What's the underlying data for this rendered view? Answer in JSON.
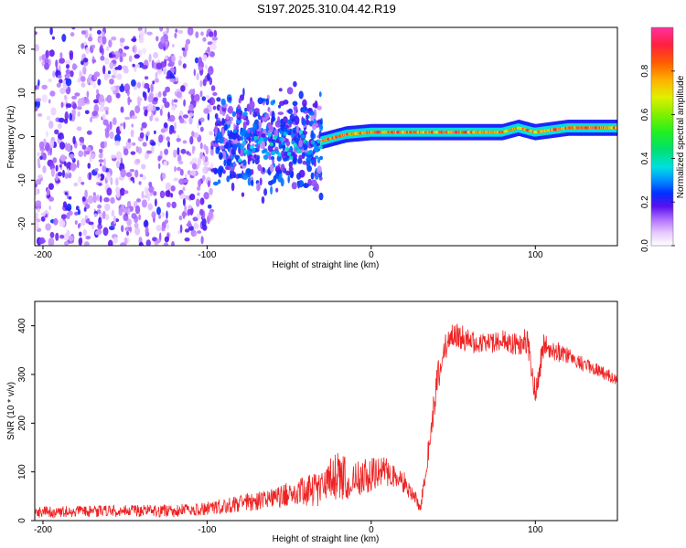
{
  "figure_title": "S197.2025.310.04.42.R19",
  "colors": {
    "snr_line": "#ee2222",
    "axis": "#000000",
    "spectrogram_low": "#e8d8ff",
    "spectrogram_mid": "#7a22ee",
    "spectrogram_peak": "#ff2050"
  },
  "chart_data": [
    {
      "type": "heatmap",
      "title": "",
      "xlabel": "Height of straight line (km)",
      "ylabel": "Frequency (Hz)",
      "xlim": [
        -205,
        150
      ],
      "ylim": [
        -25,
        25
      ],
      "xticks": [
        -200,
        -100,
        0,
        100
      ],
      "yticks": [
        -20,
        -10,
        0,
        10,
        20
      ],
      "colorbar": {
        "label": "Normalized spectral amplitude",
        "range": [
          0.0,
          1.0
        ],
        "ticks": [
          0.0,
          0.2,
          0.4,
          0.6,
          0.8
        ],
        "tick_labels": [
          "0.0",
          "0.2",
          "0.4",
          "0.6",
          "0.8"
        ],
        "colormap": "gist_ncar_r"
      },
      "description_regions": [
        {
          "x_range": [
            -205,
            -95
          ],
          "freq_range": [
            -25,
            25
          ],
          "amplitude": [
            0.05,
            0.25
          ]
        },
        {
          "x_range": [
            -95,
            -30
          ],
          "freq_range": [
            -15,
            12
          ],
          "amplitude": [
            0.1,
            0.3
          ]
        },
        {
          "x_range": [
            -30,
            150
          ],
          "freq_range": [
            -1,
            3
          ],
          "amplitude": [
            0.5,
            1.0
          ]
        }
      ],
      "ridge": {
        "x": [
          -80,
          -50,
          -30,
          -15,
          0,
          20,
          40,
          60,
          80,
          90,
          100,
          120,
          150
        ],
        "freq": [
          -3,
          -2,
          -1,
          0.5,
          1,
          1,
          1,
          1,
          1,
          2,
          1,
          2,
          2
        ]
      }
    },
    {
      "type": "line",
      "title": "",
      "xlabel": "Height of straight line (km)",
      "ylabel": "SNR (10 * v/v)",
      "xlim": [
        -205,
        150
      ],
      "ylim": [
        0,
        450
      ],
      "xticks": [
        -200,
        -100,
        0,
        100
      ],
      "yticks": [
        0,
        100,
        200,
        300,
        400
      ],
      "series": [
        {
          "name": "SNR",
          "color": "#ee2222",
          "x": [
            -205,
            -180,
            -150,
            -120,
            -100,
            -80,
            -60,
            -50,
            -40,
            -30,
            -20,
            -10,
            0,
            10,
            20,
            25,
            30,
            35,
            40,
            45,
            50,
            60,
            70,
            80,
            90,
            95,
            100,
            105,
            110,
            120,
            130,
            140,
            150
          ],
          "y": [
            18,
            18,
            20,
            20,
            25,
            35,
            45,
            55,
            60,
            70,
            90,
            85,
            95,
            100,
            80,
            60,
            25,
            150,
            280,
            360,
            380,
            370,
            360,
            370,
            360,
            370,
            260,
            360,
            350,
            340,
            320,
            305,
            290
          ],
          "noise_amplitude": [
            12,
            12,
            12,
            13,
            14,
            18,
            22,
            25,
            30,
            40,
            55,
            40,
            35,
            30,
            25,
            20,
            10,
            30,
            35,
            30,
            28,
            25,
            22,
            22,
            25,
            30,
            30,
            25,
            22,
            18,
            16,
            14,
            12
          ]
        }
      ]
    }
  ]
}
